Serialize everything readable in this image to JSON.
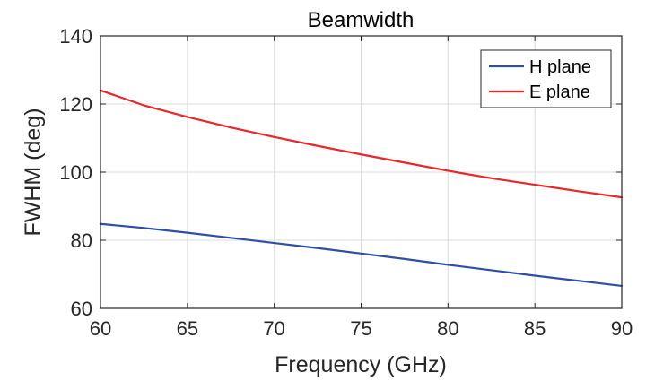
{
  "chart_data": {
    "type": "line",
    "title": "Beamwidth",
    "xlabel": "Frequency (GHz)",
    "ylabel": "FWHM (deg)",
    "xlim": [
      60,
      90
    ],
    "ylim": [
      60,
      140
    ],
    "xticks": [
      60,
      65,
      70,
      75,
      80,
      85,
      90
    ],
    "yticks": [
      60,
      80,
      100,
      120,
      140
    ],
    "grid": true,
    "legend_position": "top-right",
    "x": [
      60,
      62.5,
      65,
      67.5,
      70,
      72.5,
      75,
      77.5,
      80,
      82.5,
      85,
      87.5,
      90
    ],
    "series": [
      {
        "name": "H plane",
        "color": "#2E4FA3",
        "values": [
          84.8,
          83.6,
          82.2,
          80.7,
          79.2,
          77.7,
          76.1,
          74.5,
          72.8,
          71.2,
          69.6,
          68.1,
          66.6
        ]
      },
      {
        "name": "E plane",
        "color": "#E8262B",
        "values": [
          124.0,
          119.6,
          116.2,
          113.1,
          110.3,
          107.7,
          105.2,
          102.8,
          100.4,
          98.2,
          96.3,
          94.4,
          92.6
        ]
      }
    ]
  }
}
